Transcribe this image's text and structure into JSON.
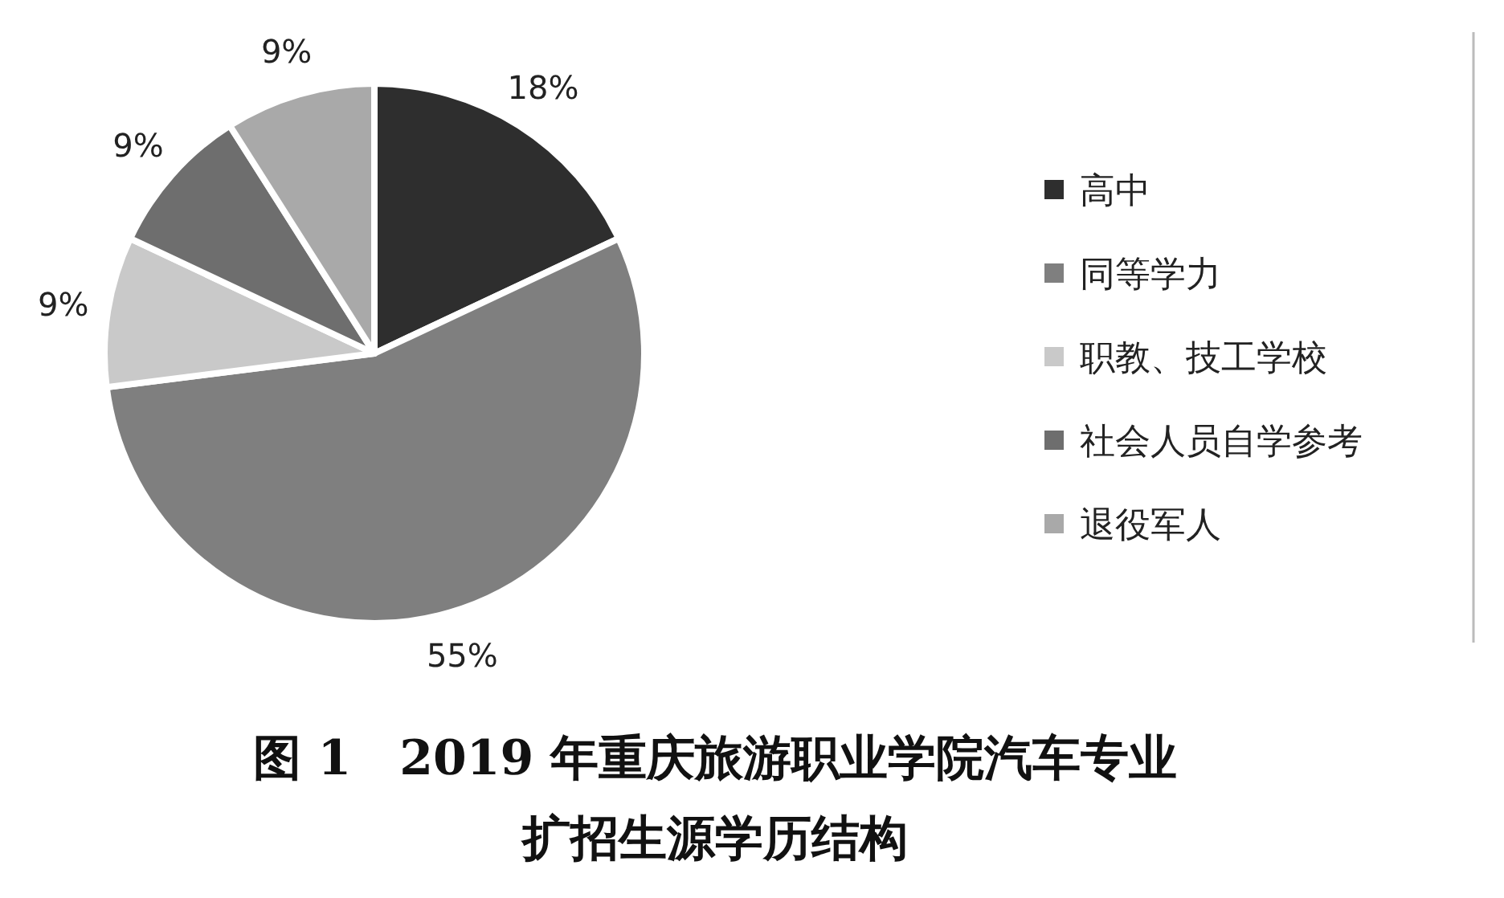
{
  "chart_data": {
    "type": "pie",
    "title": "图 1　2019 年重庆旅游职业学院汽车专业扩招生源学历结构",
    "categories": [
      "高中",
      "同等学力",
      "职教、技工学校",
      "社会人员自学参考",
      "退役军人"
    ],
    "values": [
      18,
      55,
      9,
      9,
      9
    ],
    "colors": [
      "#2e2e2e",
      "#7f7f7f",
      "#c9c9c9",
      "#6e6e6e",
      "#a9a9a9"
    ],
    "value_labels": [
      "18%",
      "55%",
      "9%",
      "9%",
      "9%"
    ],
    "legend": "right"
  }
}
